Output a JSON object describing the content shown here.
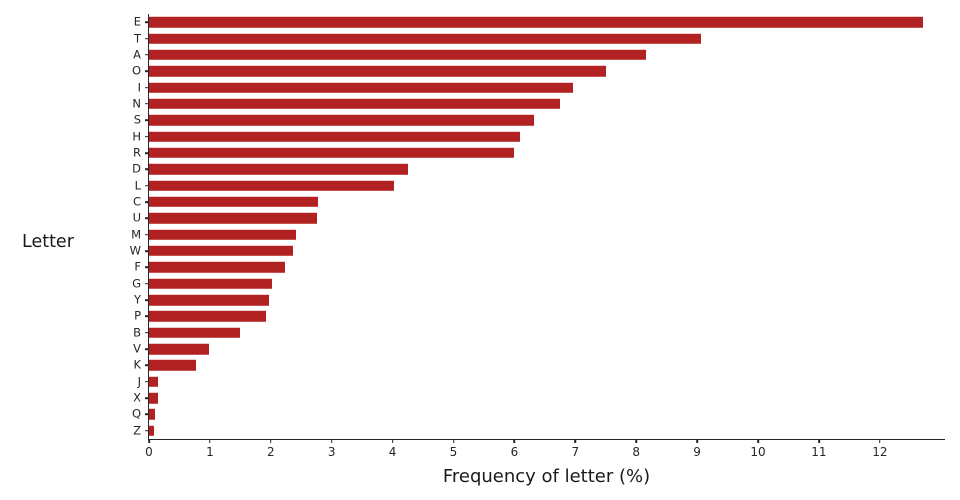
{
  "chart_data": {
    "type": "bar",
    "orientation": "horizontal",
    "title": "",
    "xlabel": "Frequency of letter (%)",
    "ylabel": "Letter",
    "xlim": [
      0,
      13.07
    ],
    "xticks": [
      0,
      1,
      2,
      3,
      4,
      5,
      6,
      7,
      8,
      9,
      10,
      11,
      12
    ],
    "grid": false,
    "legend": "none",
    "bar_color": "#b22222",
    "axis_color": "#262626",
    "categories": [
      "E",
      "T",
      "A",
      "O",
      "I",
      "N",
      "S",
      "H",
      "R",
      "D",
      "L",
      "C",
      "U",
      "M",
      "W",
      "F",
      "G",
      "Y",
      "P",
      "B",
      "V",
      "K",
      "J",
      "X",
      "Q",
      "Z"
    ],
    "values": [
      12.702,
      9.056,
      8.167,
      7.507,
      6.966,
      6.749,
      6.327,
      6.094,
      5.987,
      4.253,
      4.025,
      2.782,
      2.758,
      2.406,
      2.36,
      2.228,
      2.015,
      1.974,
      1.929,
      1.492,
      0.978,
      0.772,
      0.153,
      0.15,
      0.095,
      0.074
    ]
  }
}
